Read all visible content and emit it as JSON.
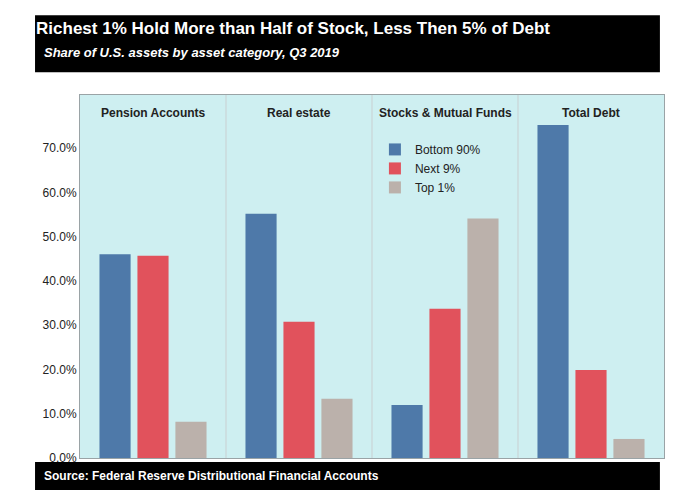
{
  "chart_data": {
    "type": "bar",
    "title": "Richest 1% Hold More than Half of Stock, Less Then 5% of Debt",
    "subtitle": "Share of U.S. assets by asset category, Q3 2019",
    "source": "Source: Federal Reserve Distributional Financial Accounts",
    "categories": [
      "Pension Accounts",
      "Real estate",
      "Stocks & Mutual Funds",
      "Total Debt"
    ],
    "series": [
      {
        "name": "Bottom 90%",
        "color": "#4e79a9",
        "values": [
          46.0,
          55.2,
          12.0,
          75.2
        ]
      },
      {
        "name": "Next 9%",
        "color": "#e1525c",
        "values": [
          45.7,
          30.8,
          33.7,
          19.9
        ]
      },
      {
        "name": "Top 1%",
        "color": "#bbb1ab",
        "values": [
          8.2,
          13.4,
          54.1,
          4.3
        ]
      }
    ],
    "ylim": [
      0,
      82
    ],
    "yticks": [
      {
        "value": 0,
        "label": "0.0%"
      },
      {
        "value": 10,
        "label": "10.0%"
      },
      {
        "value": 20,
        "label": "20.0%"
      },
      {
        "value": 30,
        "label": "30.0%"
      },
      {
        "value": 40,
        "label": "40.0%"
      },
      {
        "value": 50,
        "label": "50.0%"
      },
      {
        "value": 60,
        "label": "60.0%"
      },
      {
        "value": 70,
        "label": "70.0%"
      }
    ],
    "grid": false,
    "legend": "top"
  }
}
